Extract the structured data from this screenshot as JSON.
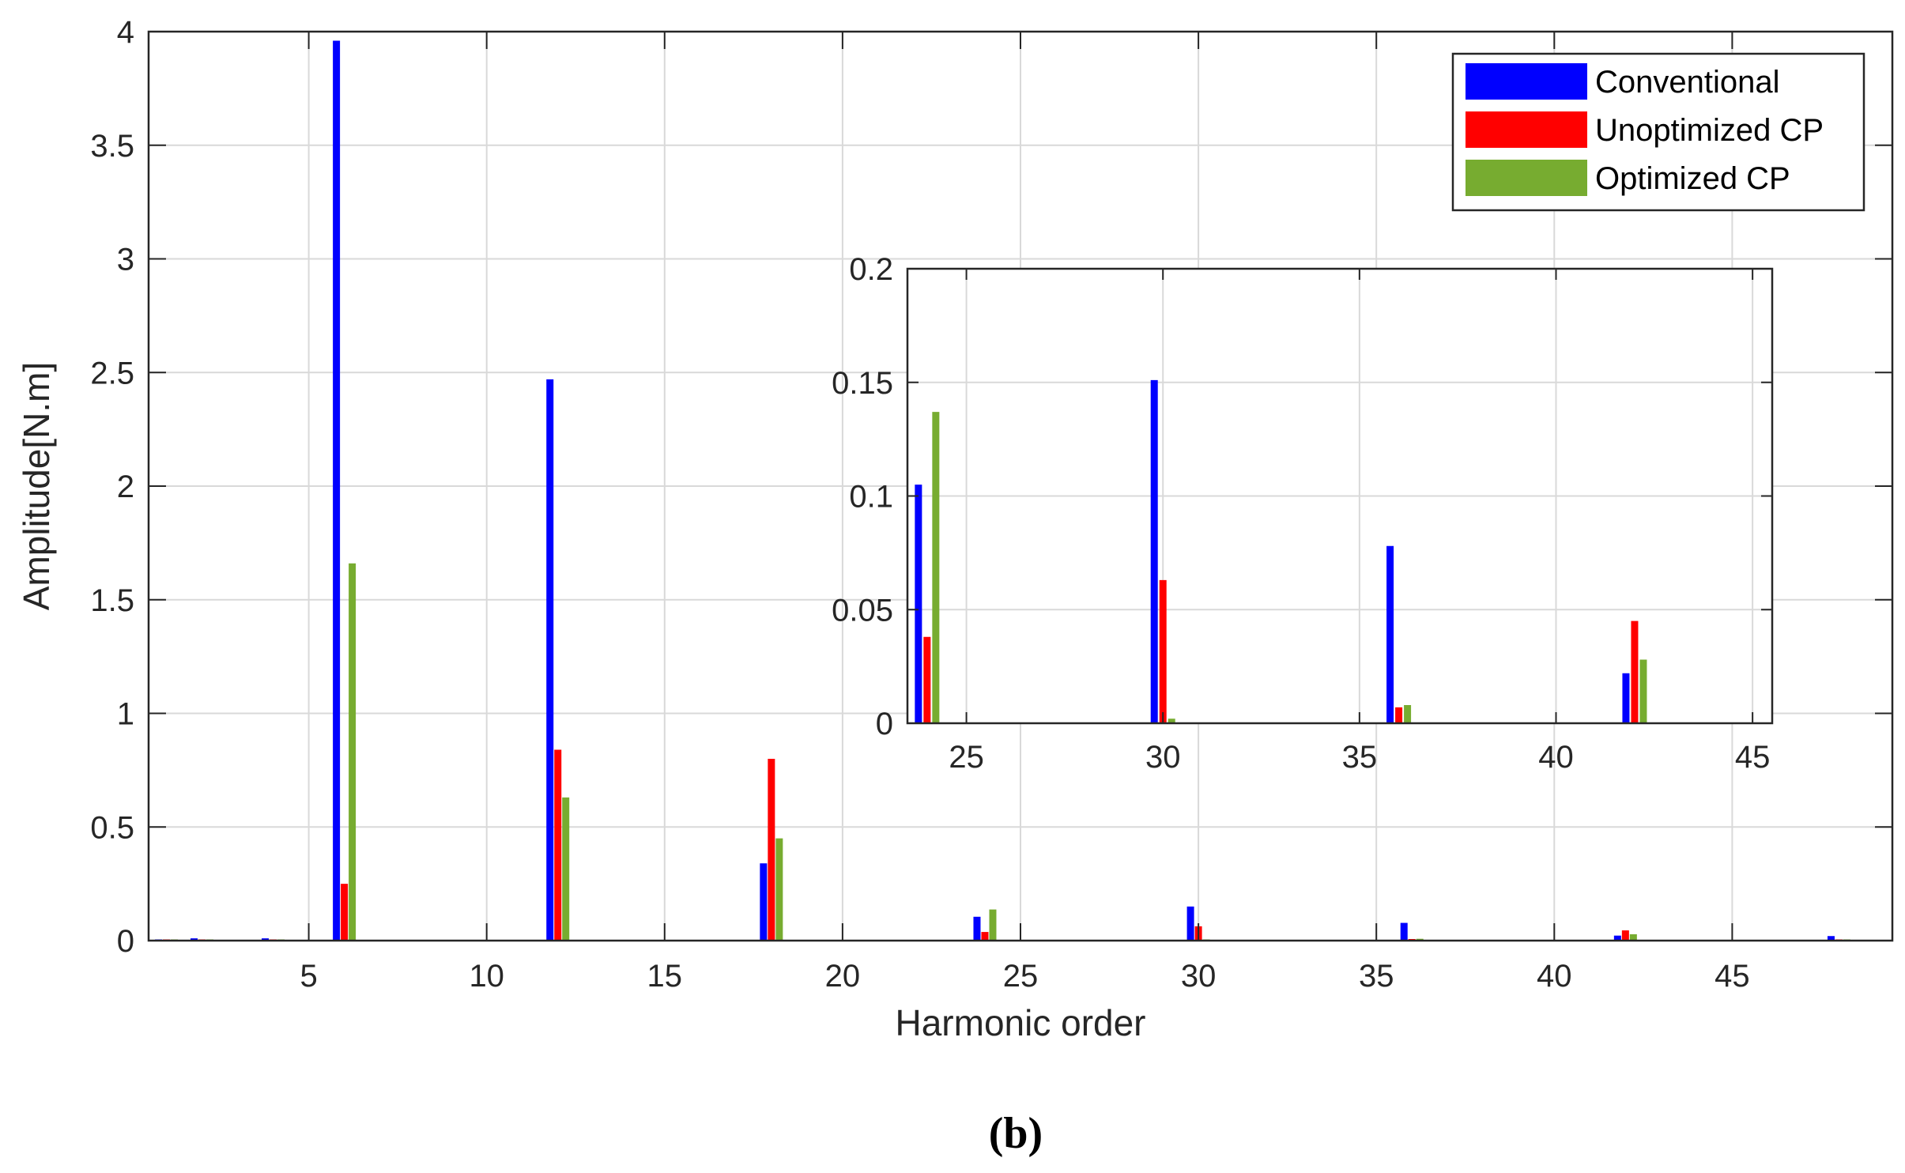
{
  "caption": "(b)",
  "colors": {
    "conventional": "#0000ff",
    "unoptimized": "#ff0000",
    "optimized": "#77ac30",
    "grid": "#d9d9d9",
    "axis": "#262626"
  },
  "chart_data": [
    {
      "type": "bar",
      "xlabel": "Harmonic order",
      "ylabel": "Amplitude[N.m]",
      "xlim": [
        0.5,
        49.5
      ],
      "ylim": [
        0,
        4
      ],
      "xticks": [
        5,
        10,
        15,
        20,
        25,
        30,
        35,
        40,
        45
      ],
      "yticks": [
        0,
        0.5,
        1,
        1.5,
        2,
        2.5,
        3,
        3.5,
        4
      ],
      "ytick_labels": [
        "0",
        "0.5",
        "1",
        "1.5",
        "2",
        "2.5",
        "3",
        "3.5",
        "4"
      ],
      "grid": true,
      "legend_position": "top-right",
      "x": [
        1,
        2,
        4,
        6,
        12,
        18,
        24,
        30,
        36,
        42,
        48
      ],
      "series": [
        {
          "name": "Conventional",
          "color_key": "conventional",
          "values": [
            0.005,
            0.01,
            0.01,
            3.96,
            2.47,
            0.34,
            0.105,
            0.15,
            0.078,
            0.022,
            0.02
          ]
        },
        {
          "name": "Unoptimized CP",
          "color_key": "unoptimized",
          "values": [
            0.004,
            0,
            0,
            0.25,
            0.84,
            0.8,
            0.038,
            0.063,
            0.007,
            0.045,
            0
          ]
        },
        {
          "name": "Optimized CP",
          "color_key": "optimized",
          "values": [
            0,
            0,
            0,
            1.66,
            0.63,
            0.45,
            0.137,
            0.002,
            0.008,
            0.028,
            0
          ]
        }
      ]
    },
    {
      "type": "bar",
      "role": "inset",
      "xlim": [
        23.5,
        45.5
      ],
      "ylim": [
        0,
        0.2
      ],
      "xticks": [
        25,
        30,
        35,
        40,
        45
      ],
      "yticks": [
        0,
        0.05,
        0.1,
        0.15,
        0.2
      ],
      "ytick_labels": [
        "0",
        "0.05",
        "0.1",
        "0.15",
        "0.2"
      ],
      "grid": true,
      "x": [
        24,
        30,
        36,
        42
      ],
      "series": [
        {
          "name": "Conventional",
          "color_key": "conventional",
          "values": [
            0.105,
            0.151,
            0.078,
            0.022
          ]
        },
        {
          "name": "Unoptimized CP",
          "color_key": "unoptimized",
          "values": [
            0.038,
            0.063,
            0.007,
            0.045
          ]
        },
        {
          "name": "Optimized CP",
          "color_key": "optimized",
          "values": [
            0.137,
            0.002,
            0.008,
            0.028
          ]
        }
      ]
    }
  ]
}
